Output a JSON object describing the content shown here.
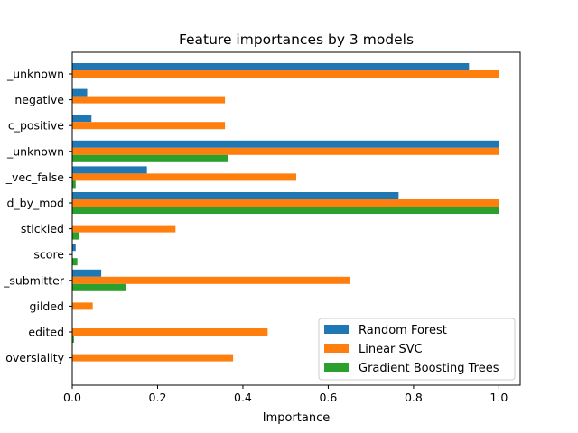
{
  "chart_data": {
    "type": "bar",
    "orientation": "horizontal",
    "title": "Feature importances by 3 models",
    "xlabel": "Importance",
    "ylabel": "",
    "xlim": [
      0,
      1.05
    ],
    "xticks": [
      "0.0",
      "0.2",
      "0.4",
      "0.6",
      "0.8",
      "1.0"
    ],
    "xtick_values": [
      0,
      0.2,
      0.4,
      0.6,
      0.8,
      1.0
    ],
    "categories": [
      "_unknown",
      "_negative",
      "c_positive",
      "_unknown",
      "_vec_false",
      "d_by_mod",
      "stickied",
      "score",
      "_submitter",
      "gilded",
      "edited",
      "oversiality"
    ],
    "series": [
      {
        "name": "Random Forest",
        "color": "#1f77b4",
        "values": [
          0.93,
          0.035,
          0.045,
          1.0,
          0.175,
          0.765,
          0.0,
          0.008,
          0.068,
          0.0,
          0.0,
          0.0
        ]
      },
      {
        "name": "Linear SVC",
        "color": "#ff7f0e",
        "values": [
          1.0,
          0.358,
          0.358,
          1.0,
          0.525,
          1.0,
          0.242,
          0.0,
          0.65,
          0.048,
          0.458,
          0.377
        ]
      },
      {
        "name": "Gradient Boosting Trees",
        "color": "#2ca02c",
        "values": [
          0.0,
          0.0,
          0.0,
          0.365,
          0.008,
          1.0,
          0.017,
          0.012,
          0.125,
          0.0,
          0.004,
          0.0
        ]
      }
    ],
    "legend_position": "lower-right",
    "grid": false
  }
}
